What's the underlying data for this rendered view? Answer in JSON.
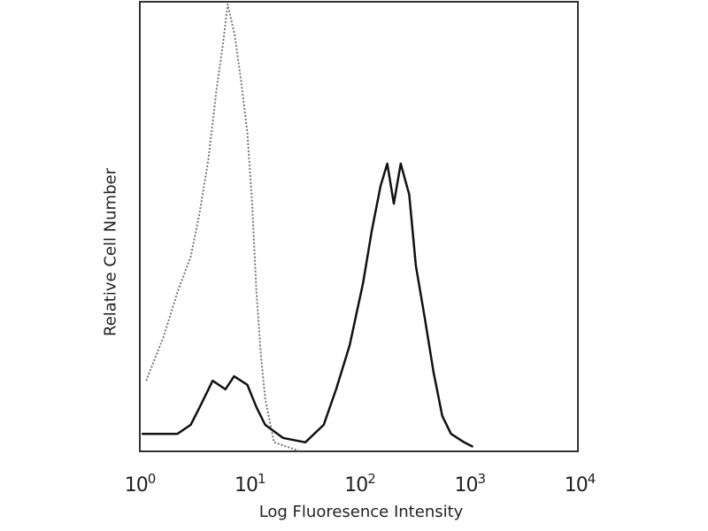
{
  "chart_data": {
    "type": "line",
    "title": "",
    "xlabel": "Log Fluoresence Intensity",
    "ylabel": "Relative Cell Number",
    "xscale": "log",
    "xlim": [
      1,
      10000
    ],
    "ylim": [
      0,
      100
    ],
    "grid": false,
    "x_tick_labels": [
      {
        "base": "10",
        "exp": "0"
      },
      {
        "base": "10",
        "exp": "1"
      },
      {
        "base": "10",
        "exp": "2"
      },
      {
        "base": "10",
        "exp": "3"
      },
      {
        "base": "10",
        "exp": "4"
      }
    ],
    "series": [
      {
        "style": "dotted",
        "color": "#777777",
        "x": [
          1.14,
          1.65,
          2.2,
          2.9,
          3.5,
          4.2,
          5.0,
          5.7,
          6.3,
          7.3,
          8.3,
          9.5,
          10.5,
          11.5,
          12.6,
          13.8,
          16.6,
          29
        ],
        "y": [
          15.7,
          25.6,
          35.4,
          43.3,
          53.1,
          64.9,
          80.7,
          90.6,
          99.4,
          92.5,
          82.7,
          70.9,
          55.1,
          35.4,
          21.7,
          11.8,
          2.0,
          0
        ]
      },
      {
        "style": "solid",
        "color": "#111111",
        "x": [
          1.04,
          2.2,
          2.9,
          3.5,
          4.6,
          6.0,
          7.2,
          9.5,
          11.5,
          13.8,
          20,
          32,
          47,
          61,
          81,
          107,
          129,
          155,
          178,
          204,
          236,
          282,
          324,
          391,
          468,
          562,
          676,
          891,
          1072
        ],
        "y": [
          3.9,
          3.9,
          5.9,
          9.8,
          15.7,
          13.8,
          16.7,
          14.8,
          9.8,
          5.9,
          3.0,
          2.0,
          5.9,
          13.8,
          23.6,
          37.4,
          49.2,
          59.1,
          64,
          55.1,
          64,
          57.1,
          41.3,
          29.5,
          17.7,
          7.9,
          3.9,
          2.0,
          1.0
        ]
      }
    ]
  }
}
